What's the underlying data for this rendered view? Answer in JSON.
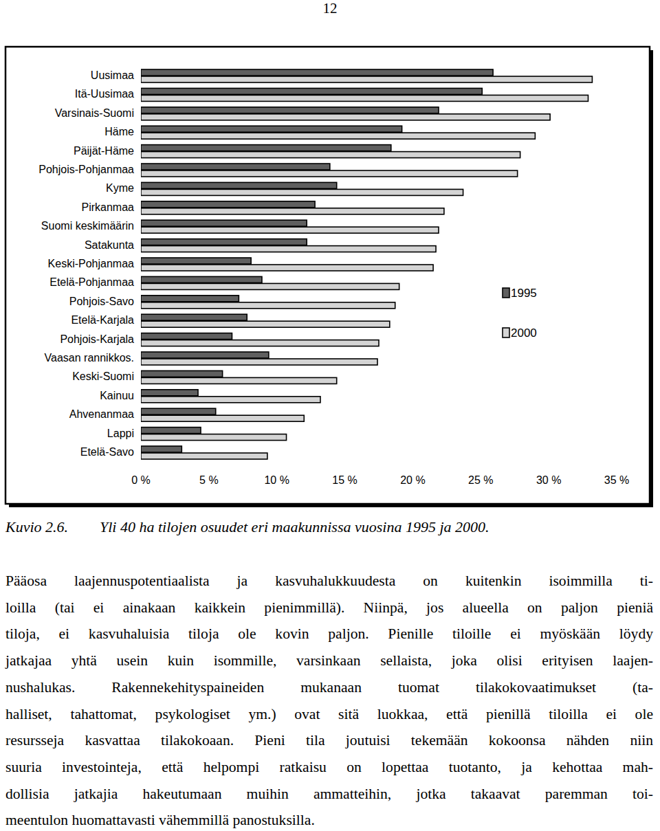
{
  "page_number": "12",
  "chart_data": {
    "type": "bar",
    "orientation": "horizontal",
    "grid": false,
    "legend": "right",
    "categories": [
      "Uusimaa",
      "Itä-Uusimaa",
      "Varsinais-Suomi",
      "Häme",
      "Päijät-Häme",
      "Pohjois-Pohjanmaa",
      "Kyme",
      "Pirkanmaa",
      "Suomi keskimäärin",
      "Satakunta",
      "Keski-Pohjanmaa",
      "Etelä-Pohjanmaa",
      "Pohjois-Savo",
      "Etelä-Karjala",
      "Pohjois-Karjala",
      "Vaasan rannikkos.",
      "Keski-Suomi",
      "Kainuu",
      "Ahvenanmaa",
      "Lappi",
      "Etelä-Savo"
    ],
    "series": [
      {
        "name": "1995",
        "color": "#5f5f5f",
        "values": [
          25.9,
          25.1,
          21.9,
          19.2,
          18.4,
          13.9,
          14.4,
          12.8,
          12.2,
          12.2,
          8.1,
          8.9,
          7.2,
          7.8,
          6.7,
          9.4,
          6.0,
          4.2,
          5.5,
          4.4,
          3.0
        ]
      },
      {
        "name": "2000",
        "color": "#d4d4d4",
        "values": [
          33.2,
          32.9,
          30.1,
          29.0,
          27.9,
          27.7,
          23.7,
          22.3,
          21.9,
          21.7,
          21.5,
          19.0,
          18.7,
          18.3,
          17.5,
          17.4,
          14.4,
          13.2,
          12.0,
          10.7,
          9.3
        ]
      }
    ],
    "xlim": [
      0,
      35
    ],
    "xticks": [
      {
        "value": 0,
        "label": "0 %"
      },
      {
        "value": 5,
        "label": "5 %"
      },
      {
        "value": 10,
        "label": "10 %"
      },
      {
        "value": 15,
        "label": "15 %"
      },
      {
        "value": 20,
        "label": "20 %"
      },
      {
        "value": 25,
        "label": "25 %"
      },
      {
        "value": 30,
        "label": "30 %"
      },
      {
        "value": 35,
        "label": "35 %"
      }
    ]
  },
  "caption": {
    "label": "Kuvio 2.6.",
    "text": "Yli 40 ha tilojen osuudet eri maakunnissa vuosina 1995 ja 2000."
  },
  "body": {
    "lines": [
      "Pääosa laajennuspotentiaalista ja kasvuhalukkuudesta on kuitenkin isoimmilla ti-",
      "loilla (tai ei ainakaan kaikkein pienimmillä). Niinpä, jos alueella on paljon pieniä",
      "tiloja, ei kasvuhaluisia tiloja ole kovin paljon. Pienille tiloille ei myöskään löydy",
      "jatkajaa yhtä usein kuin isommille, varsinkaan sellaista, joka olisi erityisen laajen-",
      "nushalukas. Rakennekehityspaineiden mukanaan tuomat tilakokovaatimukset (ta-",
      "halliset, tahattomat, psykologiset ym.) ovat sitä luokkaa, että pienillä tiloilla ei ole",
      "resursseja kasvattaa tilakokoaan. Pieni tila joutuisi tekemään kokoonsa nähden niin",
      "suuria investointeja, että helpompi ratkaisu on lopettaa tuotanto, ja kehottaa mah-",
      "dollisia jatkajia hakeutumaan muihin ammatteihin, jotka takaavat paremman toi-",
      "meentulon huomattavasti vähemmillä panostuksilla."
    ]
  }
}
